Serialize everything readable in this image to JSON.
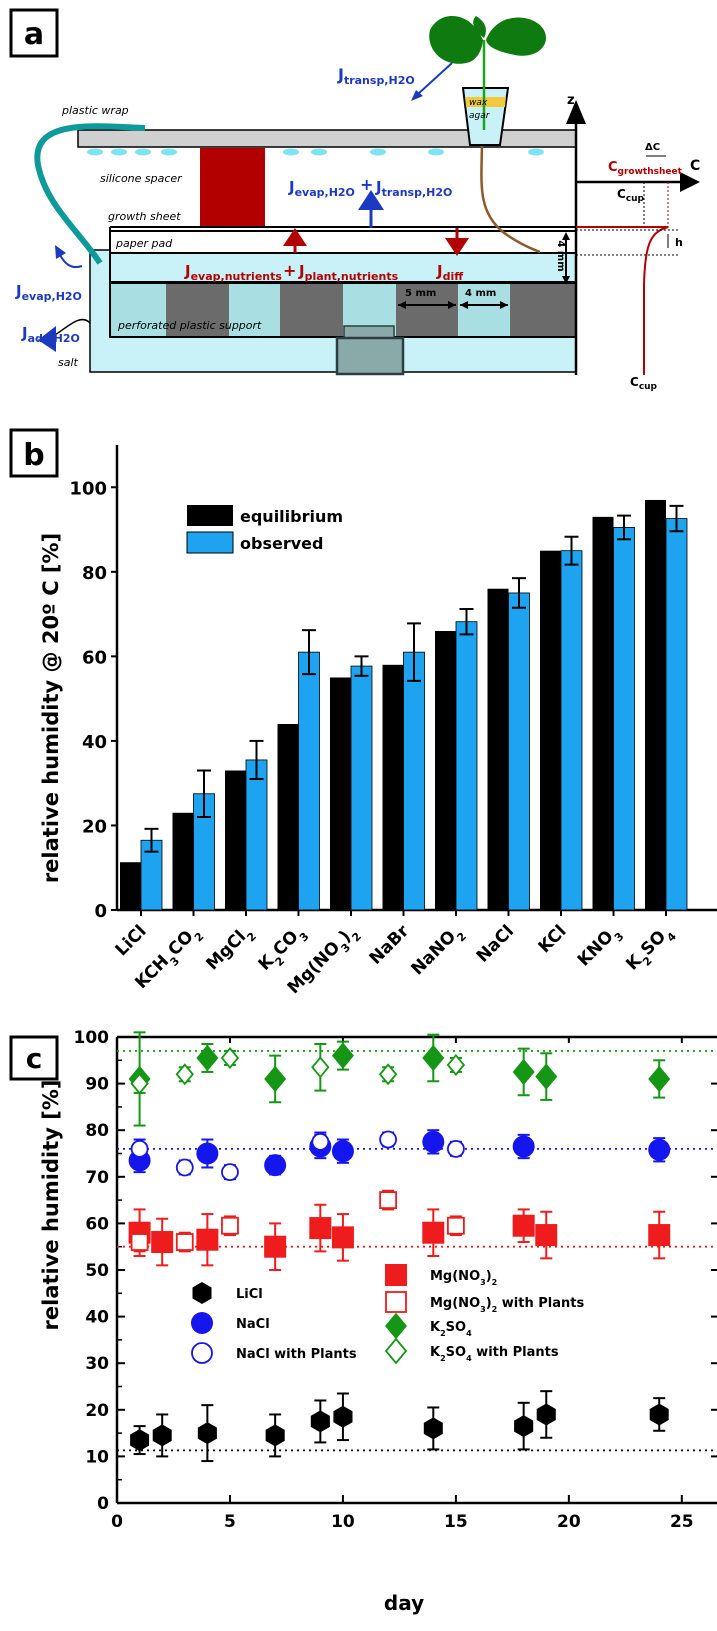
{
  "panels": {
    "a": {
      "letter": "a",
      "labels": {
        "plastic_wrap": "plastic wrap",
        "silicone_spacer": "silicone spacer",
        "growth_sheet": "growth sheet",
        "paper_pad": "paper pad",
        "perforated_plastic_support": "perforated plastic support",
        "salt": "salt",
        "wax": "wax",
        "agar": "agar",
        "five_mm": "5 mm",
        "four_mm_h": "4 mm",
        "four_mm_v": "4 mm",
        "z_axis": "z",
        "h": "h",
        "delta_c": "ΔC",
        "c_axis": "C",
        "j_transp_top": "J",
        "j_transp_top_sub": "transp,H2O",
        "j_evap_center": "J",
        "j_evap_center_sub": "evap,H2O",
        "plus_1": "+",
        "j_transp_center": "J",
        "j_transp_center_sub": "transp,H2O",
        "j_evap_nutr": "J",
        "j_evap_nutr_sub": "evap,nutrients",
        "plus_2": "+",
        "j_plant_nutr": "J",
        "j_plant_nutr_sub": "plant,nutrients",
        "j_diff": "J",
        "j_diff_sub": "diff",
        "j_evap_left": "J",
        "j_evap_left_sub": "evap,H2O",
        "j_ads": "J",
        "j_ads_sub": "ads,H2O",
        "c_growthsheet": "C",
        "c_growthsheet_sub": "growthsheet",
        "c_cup_top": "C",
        "c_cup_top_sub": "cup",
        "c_cup_bottom": "C",
        "c_cup_bottom_sub": "cup"
      }
    },
    "b": {
      "letter": "b",
      "ylabel": "relative humidity @ 20º C [%]",
      "legend": [
        "equilibrium",
        "observed"
      ]
    },
    "c": {
      "letter": "c",
      "ylabel": "relative humidity [%]",
      "xlabel": "day",
      "legend": [
        "LiCl",
        "NaCl",
        "NaCl with Plants",
        "Mg(NO3)2",
        "Mg(NO3)2 with Plants",
        "K2SO4",
        "K2SO4 with Plants"
      ]
    }
  },
  "chart_data": [
    {
      "type": "bar",
      "ylabel": "relative humidity @ 20º C [%]",
      "ylim": [
        0,
        110
      ],
      "yticks": [
        0,
        20,
        40,
        60,
        80,
        100
      ],
      "categories": [
        "LiCl",
        "KCH3CO2",
        "MgCl2",
        "K2CO3",
        "Mg(NO3)2",
        "NaBr",
        "NaNO2",
        "NaCl",
        "KCl",
        "KNO3",
        "K2SO4"
      ],
      "series": [
        {
          "name": "equilibrium",
          "color": "#000000",
          "values": [
            11.3,
            23,
            33,
            44,
            55,
            58,
            66,
            76,
            85,
            93,
            97
          ]
        },
        {
          "name": "observed",
          "color": "#1ea3f0",
          "values": [
            16.5,
            27.5,
            35.5,
            61,
            57.7,
            61,
            68.2,
            75,
            85,
            90.5,
            92.6
          ],
          "errors": [
            2.7,
            5.5,
            4.5,
            5.2,
            2.3,
            6.8,
            3,
            3.5,
            3.3,
            2.8,
            3
          ]
        }
      ],
      "legend_position": "top-left"
    },
    {
      "type": "scatter",
      "xlabel": "day",
      "ylabel": "relative humidity [%]",
      "xlim": [
        0,
        27
      ],
      "ylim": [
        0,
        100
      ],
      "xticks": [
        0,
        5,
        10,
        15,
        20,
        25
      ],
      "yticks": [
        0,
        10,
        20,
        30,
        40,
        50,
        60,
        70,
        80,
        90,
        100
      ],
      "reference_lines": [
        {
          "y": 11.3,
          "color": "#000000"
        },
        {
          "y": 55,
          "color": "#ee1c1c"
        },
        {
          "y": 76,
          "color": "#1515ee"
        },
        {
          "y": 97,
          "color": "#159615"
        }
      ],
      "series": [
        {
          "name": "LiCl",
          "marker": "hexagon",
          "filled": true,
          "color": "#000000",
          "x": [
            1,
            2,
            4,
            7,
            9,
            10,
            14,
            18,
            19,
            24
          ],
          "y": [
            13.5,
            14.5,
            15,
            14.5,
            17.5,
            18.5,
            16,
            16.5,
            19,
            19
          ],
          "err": [
            3,
            4.5,
            6,
            4.5,
            4.5,
            5,
            4.5,
            5,
            5,
            3.5
          ]
        },
        {
          "name": "NaCl",
          "marker": "circle",
          "filled": true,
          "color": "#1515ee",
          "x": [
            1,
            4,
            7,
            9,
            10,
            14,
            18,
            24
          ],
          "y": [
            73.5,
            75,
            72.5,
            76.5,
            75.5,
            77.5,
            76.5,
            75.8
          ],
          "err": [
            2.5,
            3,
            2,
            2.5,
            2.5,
            2.5,
            2.5,
            2.5
          ]
        },
        {
          "name": "NaCl with Plants",
          "marker": "circle",
          "filled": false,
          "color": "#1515ee",
          "x": [
            1,
            3,
            5,
            9,
            12,
            15
          ],
          "y": [
            76,
            72,
            71,
            77.5,
            78,
            76
          ],
          "err": [
            2,
            1.5,
            1.5,
            2,
            1.5,
            1.5
          ]
        },
        {
          "name": "Mg(NO3)2",
          "marker": "square",
          "filled": true,
          "color": "#ee1c1c",
          "x": [
            1,
            2,
            4,
            7,
            9,
            10,
            14,
            18,
            19,
            24
          ],
          "y": [
            58,
            56,
            56.5,
            55,
            59,
            57,
            58,
            59.5,
            57.5,
            57.5
          ],
          "err": [
            5,
            5,
            5.5,
            5,
            5,
            5,
            5,
            3.5,
            5,
            5
          ]
        },
        {
          "name": "Mg(NO3)2 with Plants",
          "marker": "square",
          "filled": false,
          "color": "#ee1c1c",
          "x": [
            1,
            3,
            5,
            12,
            15
          ],
          "y": [
            56,
            56,
            59.5,
            65,
            59.5
          ],
          "err": [
            2,
            2,
            2,
            2,
            2
          ]
        },
        {
          "name": "K2SO4",
          "marker": "diamond",
          "filled": true,
          "color": "#159615",
          "x": [
            1,
            4,
            7,
            10,
            14,
            18,
            19,
            24
          ],
          "y": [
            91,
            95.5,
            91,
            96,
            95.5,
            92.5,
            91.5,
            91
          ],
          "err": [
            10,
            3,
            5,
            3,
            5,
            5,
            5,
            4
          ]
        },
        {
          "name": "K2SO4 with Plants",
          "marker": "diamond",
          "filled": false,
          "color": "#159615",
          "x": [
            1,
            3,
            5,
            9,
            12,
            15
          ],
          "y": [
            90,
            92,
            95.5,
            93.5,
            92,
            94
          ],
          "err": [
            2,
            1.5,
            1.5,
            5,
            1.5,
            1.5
          ]
        }
      ]
    }
  ]
}
